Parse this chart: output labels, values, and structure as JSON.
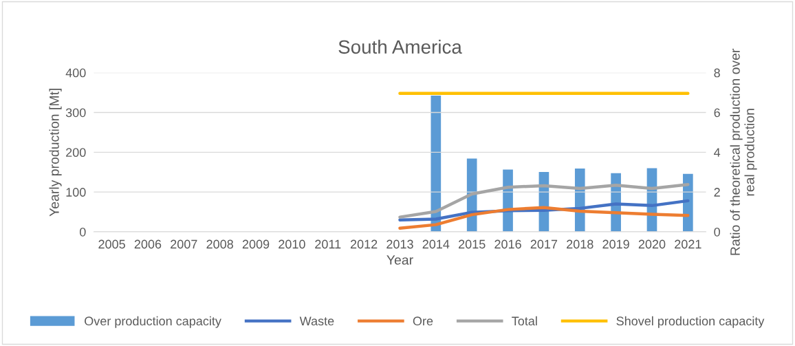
{
  "chart_data": {
    "type": "line",
    "title": "South America",
    "xlabel": "Year",
    "ylabel": "Yearly production [Mt]",
    "y2label": "Ratio of theoretical production over real production",
    "categories": [
      "2005",
      "2006",
      "2007",
      "2008",
      "2009",
      "2010",
      "2011",
      "2012",
      "2013",
      "2014",
      "2015",
      "2016",
      "2017",
      "2018",
      "2019",
      "2020",
      "2021"
    ],
    "series": [
      {
        "name": "Over production capacity",
        "type": "bar",
        "axis": "y2",
        "color": "#5b9bd5",
        "values": [
          null,
          null,
          null,
          null,
          null,
          null,
          null,
          null,
          null,
          6.85,
          3.68,
          3.13,
          3.01,
          3.18,
          2.95,
          3.2,
          2.91
        ]
      },
      {
        "name": "Waste",
        "color": "#4472c4",
        "values": [
          null,
          null,
          null,
          null,
          null,
          null,
          null,
          null,
          30,
          32,
          49,
          53,
          54,
          59,
          70,
          66,
          78
        ]
      },
      {
        "name": "Ore",
        "color": "#ed7d31",
        "values": [
          null,
          null,
          null,
          null,
          null,
          null,
          null,
          null,
          9,
          18,
          43,
          56,
          61,
          52,
          48,
          44,
          41
        ]
      },
      {
        "name": "Total",
        "color": "#a5a5a5",
        "values": [
          null,
          null,
          null,
          null,
          null,
          null,
          null,
          null,
          37,
          51,
          95,
          112,
          116,
          109,
          117,
          109,
          119
        ]
      },
      {
        "name": "Shovel production capacity",
        "color": "#ffc000",
        "values": [
          null,
          null,
          null,
          null,
          null,
          null,
          null,
          null,
          348,
          348,
          348,
          348,
          348,
          348,
          348,
          348,
          348
        ]
      }
    ],
    "ylim": [
      0,
      400
    ],
    "yticks": [
      0,
      100,
      200,
      300,
      400
    ],
    "y2lim": [
      0,
      8
    ],
    "y2ticks": [
      0,
      2,
      4,
      6,
      8
    ],
    "grid": "y",
    "legend": "bottom",
    "marker": "none",
    "line_style": "solid"
  }
}
